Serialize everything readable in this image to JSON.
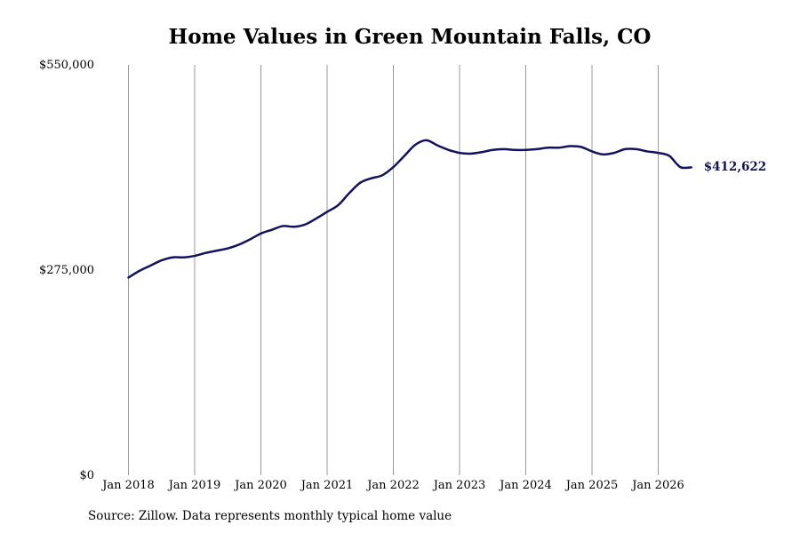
{
  "chart_data": {
    "type": "line",
    "title": "Home Values in Green Mountain Falls, CO",
    "xlabel": "",
    "ylabel": "",
    "ylim": [
      0,
      550000
    ],
    "xlim": [
      "2018-01",
      "2026-07"
    ],
    "y_ticks": [
      {
        "value": 0,
        "label": "$0"
      },
      {
        "value": 275000,
        "label": "$275,000"
      },
      {
        "value": 550000,
        "label": "$550,000"
      }
    ],
    "x_ticks": [
      {
        "date": "2018-01",
        "label": "Jan 2018"
      },
      {
        "date": "2019-01",
        "label": "Jan 2019"
      },
      {
        "date": "2020-01",
        "label": "Jan 2020"
      },
      {
        "date": "2021-01",
        "label": "Jan 2021"
      },
      {
        "date": "2022-01",
        "label": "Jan 2022"
      },
      {
        "date": "2023-01",
        "label": "Jan 2023"
      },
      {
        "date": "2024-01",
        "label": "Jan 2024"
      },
      {
        "date": "2025-01",
        "label": "Jan 2025"
      },
      {
        "date": "2026-01",
        "label": "Jan 2026"
      }
    ],
    "grid": {
      "vertical": true,
      "horizontal": false
    },
    "line_color": "#12125e",
    "grid_color": "#9a9a9a",
    "end_label": "$412,622",
    "series": [
      {
        "name": "",
        "x": [
          "2018-01",
          "2018-03",
          "2018-05",
          "2018-07",
          "2018-09",
          "2018-11",
          "2019-01",
          "2019-03",
          "2019-05",
          "2019-07",
          "2019-09",
          "2019-11",
          "2020-01",
          "2020-03",
          "2020-05",
          "2020-07",
          "2020-09",
          "2020-11",
          "2021-01",
          "2021-03",
          "2021-05",
          "2021-07",
          "2021-09",
          "2021-11",
          "2022-01",
          "2022-03",
          "2022-05",
          "2022-07",
          "2022-09",
          "2022-11",
          "2023-01",
          "2023-03",
          "2023-05",
          "2023-07",
          "2023-09",
          "2023-11",
          "2024-01",
          "2024-03",
          "2024-05",
          "2024-07",
          "2024-09",
          "2024-11",
          "2025-01",
          "2025-03",
          "2025-05",
          "2025-07",
          "2025-09",
          "2025-11",
          "2026-01",
          "2026-03",
          "2026-05",
          "2026-07"
        ],
        "values": [
          265000,
          274000,
          281000,
          288000,
          292000,
          292000,
          294000,
          298000,
          301000,
          304000,
          309000,
          316000,
          324000,
          329000,
          334000,
          333000,
          336000,
          344000,
          353000,
          362000,
          378000,
          392000,
          398000,
          402000,
          413000,
          428000,
          443000,
          449000,
          442000,
          436000,
          432000,
          431000,
          433000,
          436000,
          437000,
          436000,
          436000,
          437000,
          439000,
          439000,
          441000,
          440000,
          434000,
          430000,
          432000,
          437000,
          437000,
          434000,
          432000,
          428000,
          413000,
          412622
        ]
      }
    ]
  },
  "source_note": "Source: Zillow. Data represents monthly typical home value"
}
